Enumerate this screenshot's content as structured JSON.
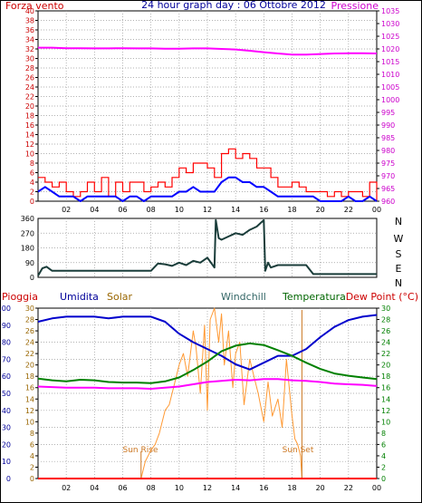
{
  "header": {
    "wind_label": "Forza vento",
    "title": "24 hour graph day : 06 Ottobre 2012",
    "pressure_label": "Pressione"
  },
  "colors": {
    "frame": "#000000",
    "panel_fill": "#ffffff",
    "grid": "#9a9a9a",
    "left_axis_red": "#cc0000",
    "right_axis_magenta": "#cc00cc",
    "wind_gust": "#ff0000",
    "wind_avg": "#0000ff",
    "pressure": "#ff00ff",
    "wind_dir": "#1a3d3a",
    "humidity": "#0000cc",
    "temperature": "#008000",
    "dewpoint": "#ff00ff",
    "solar": "#ff9933",
    "rain": "#ff0000",
    "legend_blue": "#000099",
    "legend_solar": "#996600",
    "legend_windchill": "#336666",
    "legend_green": "#006600",
    "legend_red": "#cc0000",
    "right_axis_green": "#008000",
    "sun_marker": "#cc7722"
  },
  "chart_data": [
    {
      "type": "line",
      "title": "24 hour graph day : 06 Ottobre 2012",
      "xlabel": "",
      "x_ticks": [
        "02",
        "04",
        "06",
        "08",
        "10",
        "12",
        "14",
        "16",
        "18",
        "20",
        "22",
        "00"
      ],
      "xlim": [
        0,
        24
      ],
      "ylabel_left": "Forza vento",
      "ylim_left": [
        0,
        40
      ],
      "left_ticks": [
        "0",
        "2",
        "4",
        "6",
        "8",
        "10",
        "12",
        "14",
        "16",
        "18",
        "20",
        "22",
        "24",
        "26",
        "28",
        "30",
        "32",
        "34",
        "36",
        "38",
        "40"
      ],
      "ylabel_right": "Pressione",
      "ylim_right": [
        960,
        1035
      ],
      "right_ticks": [
        "960",
        "965",
        "970",
        "975",
        "980",
        "985",
        "990",
        "995",
        "1000",
        "1005",
        "1010",
        "1015",
        "1020",
        "1025",
        "1030",
        "1035"
      ],
      "grid": true,
      "series": [
        {
          "axis": "left",
          "x": [
            0,
            0.5,
            1,
            1.5,
            2,
            2.5,
            3,
            3.5,
            4,
            4.5,
            5,
            5.5,
            6,
            6.5,
            7,
            7.5,
            8,
            8.5,
            9,
            9.5,
            10,
            10.5,
            11,
            11.5,
            12,
            12.5,
            13,
            13.5,
            14,
            14.5,
            15,
            15.5,
            16,
            16.5,
            17,
            17.5,
            18,
            18.5,
            19,
            19.5,
            20,
            20.5,
            21,
            21.5,
            22,
            22.5,
            23,
            23.5,
            24
          ],
          "values": [
            5,
            4,
            3,
            4,
            2,
            1,
            2,
            4,
            2,
            5,
            1,
            4,
            2,
            4,
            4,
            2,
            3,
            4,
            3,
            5,
            7,
            6,
            8,
            8,
            7,
            5,
            10,
            11,
            9,
            10,
            9,
            7,
            7,
            5,
            3,
            3,
            4,
            3,
            2,
            2,
            2,
            1,
            2,
            1,
            2,
            2,
            1,
            4,
            0
          ]
        },
        {
          "axis": "left",
          "x": [
            0,
            0.5,
            1,
            1.5,
            2,
            2.5,
            3,
            3.5,
            4,
            4.5,
            5,
            5.5,
            6,
            6.5,
            7,
            7.5,
            8,
            8.5,
            9,
            9.5,
            10,
            10.5,
            11,
            11.5,
            12,
            12.5,
            13,
            13.5,
            14,
            14.5,
            15,
            15.5,
            16,
            16.5,
            17,
            17.5,
            18,
            18.5,
            19,
            19.5,
            20,
            20.5,
            21,
            21.5,
            22,
            22.5,
            23,
            23.5,
            24
          ],
          "values": [
            2,
            3,
            2,
            1,
            1,
            1,
            0,
            1,
            1,
            1,
            1,
            1,
            0,
            1,
            1,
            0,
            1,
            1,
            1,
            1,
            2,
            2,
            3,
            2,
            2,
            2,
            4,
            5,
            5,
            4,
            4,
            3,
            3,
            2,
            1,
            1,
            1,
            1,
            1,
            1,
            0,
            0,
            0,
            0,
            1,
            0,
            0,
            1,
            0
          ]
        },
        {
          "axis": "right",
          "x": [
            0,
            1,
            2,
            3,
            4,
            5,
            6,
            7,
            8,
            9,
            10,
            11,
            12,
            13,
            14,
            15,
            16,
            17,
            18,
            19,
            20,
            21,
            22,
            23,
            24
          ],
          "values": [
            1020.5,
            1020.5,
            1020.3,
            1020.3,
            1020.2,
            1020.2,
            1020.3,
            1020.2,
            1020.2,
            1020.1,
            1020.1,
            1020.2,
            1020.2,
            1020.0,
            1019.8,
            1019.3,
            1018.7,
            1018.2,
            1017.8,
            1017.8,
            1018.0,
            1018.2,
            1018.3,
            1018.3,
            1018.2
          ]
        }
      ]
    },
    {
      "type": "line",
      "title": "",
      "xlim": [
        0,
        24
      ],
      "ylim": [
        0,
        360
      ],
      "left_ticks": [
        "0",
        "90",
        "180",
        "270",
        "360"
      ],
      "direction_labels": [
        "N",
        "W",
        "S",
        "E",
        "N"
      ],
      "grid": true,
      "series": [
        {
          "x": [
            0,
            0.3,
            0.6,
            1.0,
            3.0,
            6.0,
            8.0,
            8.5,
            9.0,
            9.5,
            10.0,
            10.5,
            11.0,
            11.5,
            12.0,
            12.5,
            12.6,
            12.8,
            13.0,
            13.5,
            14.0,
            14.5,
            15.0,
            15.5,
            16.0,
            16.1,
            16.3,
            16.5,
            17.0,
            18.0,
            19.0,
            19.5,
            24.0
          ],
          "values": [
            10,
            55,
            65,
            40,
            40,
            40,
            40,
            85,
            80,
            70,
            90,
            75,
            100,
            90,
            120,
            60,
            350,
            240,
            230,
            250,
            270,
            260,
            290,
            310,
            350,
            40,
            90,
            60,
            75,
            75,
            75,
            20,
            20
          ]
        }
      ]
    },
    {
      "type": "line",
      "title": "",
      "x_ticks": [
        "02",
        "04",
        "06",
        "08",
        "10",
        "12",
        "14",
        "16",
        "18",
        "20",
        "22",
        "00"
      ],
      "xlim": [
        0,
        24
      ],
      "legend": [
        "Pioggia",
        "Umidita",
        "Solar",
        "Windchill",
        "Temperatura",
        "Dew Point (°C)"
      ],
      "ylim_left": [
        0,
        100
      ],
      "left_ticks": [
        "0",
        "10",
        "20",
        "30",
        "40",
        "50",
        "60",
        "70",
        "80",
        "90",
        "100"
      ],
      "ylim_inner": [
        0,
        30
      ],
      "inner_ticks": [
        "0",
        "2",
        "4",
        "6",
        "8",
        "10",
        "12",
        "14",
        "16",
        "18",
        "20",
        "22",
        "24",
        "26",
        "28",
        "30"
      ],
      "ylim_right": [
        0,
        30
      ],
      "right_ticks": [
        "0",
        "2",
        "4",
        "6",
        "8",
        "10",
        "12",
        "14",
        "16",
        "18",
        "20",
        "22",
        "24",
        "26",
        "28",
        "30"
      ],
      "annotations": [
        "Sun Rise",
        "Sun Set"
      ],
      "sunrise_hour": 7.3,
      "sunset_hour": 18.7,
      "grid": true,
      "series": [
        {
          "name": "Umidita",
          "axis": "left",
          "x": [
            0,
            1,
            2,
            3,
            4,
            5,
            6,
            7,
            8,
            9,
            10,
            11,
            12,
            13,
            14,
            15,
            16,
            17,
            18,
            19,
            20,
            21,
            22,
            23,
            24
          ],
          "values": [
            92,
            94,
            95,
            95,
            95,
            94,
            95,
            95,
            95,
            92,
            85,
            80,
            76,
            72,
            67,
            64,
            68,
            72,
            72,
            76,
            83,
            89,
            93,
            95,
            96
          ]
        },
        {
          "name": "Temperatura",
          "axis": "right",
          "x": [
            0,
            1,
            2,
            3,
            4,
            5,
            6,
            7,
            8,
            9,
            10,
            11,
            12,
            13,
            14,
            15,
            16,
            17,
            18,
            19,
            20,
            21,
            22,
            23,
            24
          ],
          "values": [
            17.6,
            17.3,
            17.1,
            17.4,
            17.3,
            17.0,
            16.9,
            16.9,
            16.8,
            17.1,
            17.8,
            19.1,
            20.6,
            22.4,
            23.4,
            23.8,
            23.5,
            22.6,
            21.6,
            20.4,
            19.3,
            18.5,
            18.1,
            17.8,
            17.5
          ]
        },
        {
          "name": "Dew Point (°C)",
          "axis": "right",
          "x": [
            0,
            1,
            2,
            3,
            4,
            5,
            6,
            7,
            8,
            9,
            10,
            11,
            12,
            13,
            14,
            15,
            16,
            17,
            18,
            19,
            20,
            21,
            22,
            23,
            24
          ],
          "values": [
            16.2,
            16.1,
            16.0,
            16.0,
            16.0,
            15.9,
            15.9,
            15.9,
            15.8,
            16.0,
            16.2,
            16.6,
            17.0,
            17.2,
            17.4,
            17.3,
            17.5,
            17.5,
            17.3,
            17.2,
            17.0,
            16.7,
            16.6,
            16.5,
            16.3
          ]
        },
        {
          "name": "Solar",
          "axis": "inner",
          "x": [
            7.3,
            7.6,
            8.0,
            8.3,
            8.6,
            9.0,
            9.3,
            9.6,
            10.0,
            10.3,
            10.6,
            11.0,
            11.2,
            11.5,
            11.8,
            12.0,
            12.2,
            12.5,
            12.8,
            13.0,
            13.2,
            13.5,
            13.8,
            14.0,
            14.3,
            14.6,
            15.0,
            15.3,
            15.6,
            16.0,
            16.3,
            16.6,
            17.0,
            17.3,
            17.6,
            18.0,
            18.2,
            18.4,
            18.6,
            18.7
          ],
          "values": [
            0,
            3,
            5,
            6,
            8,
            12,
            13,
            16,
            20,
            22,
            18,
            26,
            23,
            15,
            27,
            12,
            28,
            30,
            24,
            29,
            20,
            26,
            16,
            22,
            24,
            13,
            21,
            18,
            15,
            10,
            17,
            11,
            14,
            9,
            21,
            11,
            7,
            6,
            4,
            0
          ]
        },
        {
          "name": "Pioggia",
          "axis": "inner",
          "x": [
            0,
            24
          ],
          "values": [
            0,
            0
          ]
        }
      ]
    }
  ]
}
